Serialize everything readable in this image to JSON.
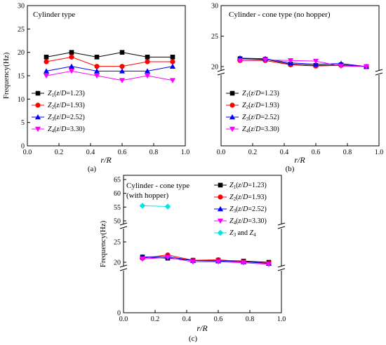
{
  "figure": {
    "caption_a": "(a)",
    "caption_b": "(b)",
    "caption_c": "(c)"
  },
  "legend_labels": [
    {
      "sym": "Z",
      "sub": "1",
      "rest": "(z/D=1.23)"
    },
    {
      "sym": "Z",
      "sub": "2",
      "rest": "(z/D=1.93)"
    },
    {
      "sym": "Z",
      "sub": "3",
      "rest": "(z/D=2.52)"
    },
    {
      "sym": "Z",
      "sub": "4",
      "rest": "(z/D=3.30)"
    }
  ],
  "series_colors": [
    "#000000",
    "#ff0000",
    "#0000ff",
    "#ff00ff",
    "#00e5e5"
  ],
  "chart_data": [
    {
      "id": "a",
      "type": "line",
      "title": "Cylinder type",
      "xlabel": "r/R",
      "ylabel": "Frequency(Hz)",
      "xlim": [
        0.0,
        1.0
      ],
      "ylim": [
        0,
        30
      ],
      "xticks": [
        "0.0",
        "0.2",
        "0.4",
        "0.6",
        "0.8",
        "1.0"
      ],
      "yticks": [
        "0",
        "5",
        "10",
        "15",
        "20",
        "25",
        "30"
      ],
      "x": [
        0.12,
        0.28,
        0.44,
        0.6,
        0.76,
        0.92
      ],
      "series": [
        {
          "name": "Z1(z/D=1.23)",
          "marker": "square",
          "values": [
            19,
            20,
            19,
            20,
            19,
            19
          ]
        },
        {
          "name": "Z2(z/D=1.93)",
          "marker": "circle",
          "values": [
            18,
            19,
            17,
            17,
            18,
            18
          ]
        },
        {
          "name": "Z3(z/D=2.52)",
          "marker": "triangle-up",
          "values": [
            16,
            17,
            16,
            16,
            16,
            17
          ]
        },
        {
          "name": "Z4(z/D=3.30)",
          "marker": "triangle-down",
          "values": [
            15,
            16,
            15,
            14,
            15,
            14
          ]
        }
      ],
      "legend": "bottom-left",
      "caption": "(a)"
    },
    {
      "id": "b",
      "type": "line",
      "title": "Cylinder - cone type (no hopper)",
      "xlabel": "r/R",
      "ylabel": "",
      "xlim": [
        0.0,
        1.0
      ],
      "ylim": [
        0,
        30
      ],
      "axis_break": true,
      "xticks": [
        "0.0",
        "0.2",
        "0.4",
        "0.6",
        "0.8",
        "1.0"
      ],
      "yticks": [
        "20",
        "25",
        "30"
      ],
      "x": [
        0.12,
        0.28,
        0.44,
        0.6,
        0.76,
        0.92
      ],
      "series": [
        {
          "name": "Z1(z/D=1.23)",
          "marker": "square",
          "values": [
            21.3,
            21.2,
            20.4,
            20.2,
            20.3,
            20.0
          ]
        },
        {
          "name": "Z2(z/D=1.93)",
          "marker": "circle",
          "values": [
            21.0,
            21.0,
            20.3,
            20.1,
            20.2,
            20.0
          ]
        },
        {
          "name": "Z3(z/D=2.52)",
          "marker": "triangle-up",
          "values": [
            21.4,
            21.3,
            20.6,
            20.4,
            20.5,
            20.0
          ]
        },
        {
          "name": "Z4(z/D=3.30)",
          "marker": "triangle-down",
          "values": [
            21.0,
            21.1,
            21.0,
            20.9,
            20.1,
            20.0
          ]
        }
      ],
      "legend": "bottom-left",
      "caption": "(b)"
    },
    {
      "id": "c",
      "type": "line",
      "title": "Cylinder - cone type",
      "subtitle": "(with hopper)",
      "xlabel": "r/R",
      "ylabel": "Frequency(Hz)",
      "xlim": [
        0.0,
        1.0
      ],
      "ylim": [
        0,
        65
      ],
      "axis_break": true,
      "xticks": [
        "0.0",
        "0.2",
        "0.4",
        "0.6",
        "0.8",
        "1.0"
      ],
      "yticks": [
        "0",
        "20",
        "25",
        "50",
        "55",
        "60",
        "65"
      ],
      "x": [
        0.12,
        0.28,
        0.44,
        0.6,
        0.76,
        0.92
      ],
      "series": [
        {
          "name": "Z1(z/D=1.23)",
          "marker": "square",
          "values": [
            21.3,
            21.0,
            20.5,
            20.5,
            20.3,
            20.0
          ]
        },
        {
          "name": "Z2(z/D=1.93)",
          "marker": "circle",
          "values": [
            21.0,
            21.8,
            20.5,
            20.6,
            20.2,
            19.8
          ]
        },
        {
          "name": "Z3(z/D=2.52)",
          "marker": "triangle-up",
          "values": [
            21.3,
            21.4,
            20.4,
            20.3,
            20.1,
            19.7
          ]
        },
        {
          "name": "Z4(z/D=3.30)",
          "marker": "triangle-down",
          "values": [
            20.8,
            21.2,
            20.1,
            20.1,
            19.9,
            19.5
          ]
        },
        {
          "name": "Z3 and Z4",
          "marker": "diamond",
          "x": [
            0.12,
            0.28
          ],
          "values": [
            55.5,
            55.2
          ]
        }
      ],
      "legend": "top-right",
      "legend_extra": {
        "prefix": "Z",
        "sub1": "3",
        "mid": " and  ",
        "prefix2": "Z",
        "sub2": "4"
      },
      "caption": "(c)"
    }
  ]
}
